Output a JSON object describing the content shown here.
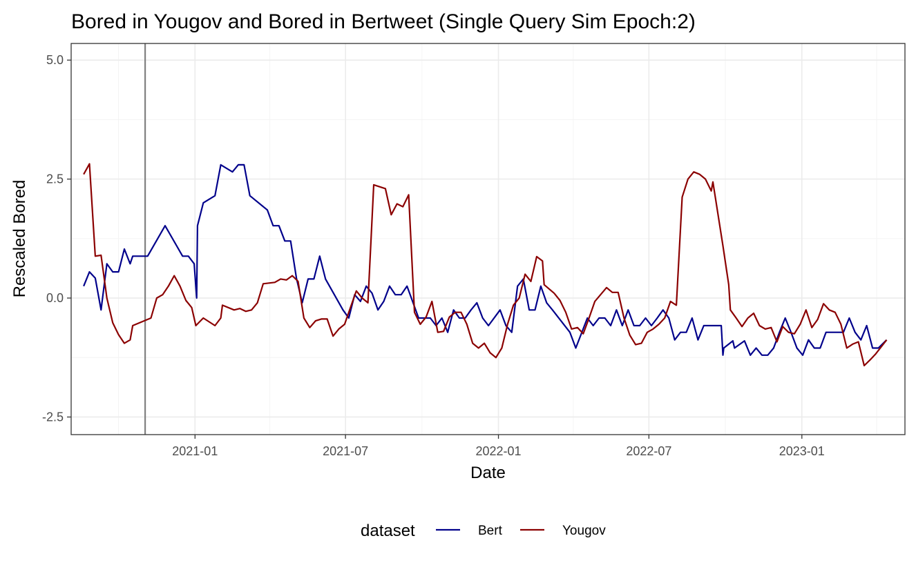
{
  "chart_data": {
    "type": "line",
    "title": "Bored in Yougov and Bored in Bertweet (Single Query Sim Epoch:2)",
    "xlabel": "Date",
    "ylabel": "Rescaled  Bored",
    "x_range": [
      "2020-08-05",
      "2023-05-05"
    ],
    "ylim": [
      -2.87,
      5.35
    ],
    "x_ticks": [
      {
        "date": "2021-01-01",
        "label": "2021-01"
      },
      {
        "date": "2021-07-01",
        "label": "2021-07"
      },
      {
        "date": "2022-01-01",
        "label": "2022-01"
      },
      {
        "date": "2022-07-01",
        "label": "2022-07"
      },
      {
        "date": "2023-01-01",
        "label": "2023-01"
      }
    ],
    "x_minor_ticks": [
      "2020-10-01",
      "2021-04-01",
      "2021-10-01",
      "2022-04-01",
      "2022-10-01",
      "2023-04-01"
    ],
    "y_ticks": [
      {
        "value": -2.5,
        "label": "-2.5"
      },
      {
        "value": 0.0,
        "label": "0.0"
      },
      {
        "value": 2.5,
        "label": "2.5"
      },
      {
        "value": 5.0,
        "label": "5.0"
      }
    ],
    "y_minor_ticks": [
      -1.25,
      1.25,
      3.75
    ],
    "grid": true,
    "vline": {
      "date": "2020-11-02",
      "color": "#808080"
    },
    "legend": {
      "title": "dataset",
      "position": "bottom"
    },
    "series": [
      {
        "name": "Bert",
        "color": "#00008B",
        "points": [
          [
            "2020-08-20",
            0.25
          ],
          [
            "2020-08-27",
            0.55
          ],
          [
            "2020-09-03",
            0.42
          ],
          [
            "2020-09-10",
            -0.25
          ],
          [
            "2020-09-17",
            0.72
          ],
          [
            "2020-09-24",
            0.55
          ],
          [
            "2020-10-01",
            0.55
          ],
          [
            "2020-10-08",
            1.03
          ],
          [
            "2020-10-15",
            0.72
          ],
          [
            "2020-10-18",
            0.88
          ],
          [
            "2020-10-22",
            0.88
          ],
          [
            "2020-11-05",
            0.88
          ],
          [
            "2020-11-26",
            1.52
          ],
          [
            "2020-12-17",
            0.88
          ],
          [
            "2020-12-24",
            0.88
          ],
          [
            "2020-12-31",
            0.72
          ],
          [
            "2021-01-03",
            0.0
          ],
          [
            "2021-01-04",
            1.52
          ],
          [
            "2021-01-11",
            2.0
          ],
          [
            "2021-01-25",
            2.15
          ],
          [
            "2021-02-01",
            2.8
          ],
          [
            "2021-02-15",
            2.65
          ],
          [
            "2021-02-22",
            2.8
          ],
          [
            "2021-03-01",
            2.8
          ],
          [
            "2021-03-08",
            2.15
          ],
          [
            "2021-03-29",
            1.85
          ],
          [
            "2021-04-05",
            1.52
          ],
          [
            "2021-04-12",
            1.52
          ],
          [
            "2021-04-19",
            1.2
          ],
          [
            "2021-04-26",
            1.2
          ],
          [
            "2021-05-03",
            0.42
          ],
          [
            "2021-05-10",
            -0.1
          ],
          [
            "2021-05-17",
            0.4
          ],
          [
            "2021-05-24",
            0.4
          ],
          [
            "2021-05-31",
            0.88
          ],
          [
            "2021-06-07",
            0.4
          ],
          [
            "2021-06-28",
            -0.25
          ],
          [
            "2021-07-05",
            -0.42
          ],
          [
            "2021-07-12",
            0.07
          ],
          [
            "2021-07-19",
            -0.07
          ],
          [
            "2021-07-26",
            0.25
          ],
          [
            "2021-08-02",
            0.1
          ],
          [
            "2021-08-09",
            -0.25
          ],
          [
            "2021-08-16",
            -0.07
          ],
          [
            "2021-08-23",
            0.25
          ],
          [
            "2021-08-30",
            0.07
          ],
          [
            "2021-09-06",
            0.07
          ],
          [
            "2021-09-13",
            0.25
          ],
          [
            "2021-09-27",
            -0.42
          ],
          [
            "2021-10-04",
            -0.42
          ],
          [
            "2021-10-11",
            -0.42
          ],
          [
            "2021-10-18",
            -0.58
          ],
          [
            "2021-10-25",
            -0.42
          ],
          [
            "2021-11-01",
            -0.72
          ],
          [
            "2021-11-08",
            -0.25
          ],
          [
            "2021-11-15",
            -0.42
          ],
          [
            "2021-11-22",
            -0.42
          ],
          [
            "2021-11-29",
            -0.25
          ],
          [
            "2021-12-06",
            -0.1
          ],
          [
            "2021-12-13",
            -0.42
          ],
          [
            "2021-12-20",
            -0.58
          ],
          [
            "2022-01-03",
            -0.25
          ],
          [
            "2022-01-10",
            -0.58
          ],
          [
            "2022-01-17",
            -0.72
          ],
          [
            "2022-01-24",
            0.25
          ],
          [
            "2022-01-31",
            0.4
          ],
          [
            "2022-02-07",
            -0.25
          ],
          [
            "2022-02-14",
            -0.25
          ],
          [
            "2022-02-21",
            0.25
          ],
          [
            "2022-02-28",
            -0.1
          ],
          [
            "2022-03-07",
            -0.25
          ],
          [
            "2022-03-28",
            -0.72
          ],
          [
            "2022-04-04",
            -1.05
          ],
          [
            "2022-04-18",
            -0.42
          ],
          [
            "2022-04-25",
            -0.58
          ],
          [
            "2022-05-02",
            -0.42
          ],
          [
            "2022-05-09",
            -0.42
          ],
          [
            "2022-05-16",
            -0.58
          ],
          [
            "2022-05-23",
            -0.25
          ],
          [
            "2022-05-30",
            -0.58
          ],
          [
            "2022-06-06",
            -0.25
          ],
          [
            "2022-06-13",
            -0.58
          ],
          [
            "2022-06-20",
            -0.58
          ],
          [
            "2022-06-27",
            -0.42
          ],
          [
            "2022-07-04",
            -0.58
          ],
          [
            "2022-07-11",
            -0.42
          ],
          [
            "2022-07-18",
            -0.25
          ],
          [
            "2022-07-25",
            -0.42
          ],
          [
            "2022-08-01",
            -0.88
          ],
          [
            "2022-08-08",
            -0.72
          ],
          [
            "2022-08-15",
            -0.72
          ],
          [
            "2022-08-22",
            -0.42
          ],
          [
            "2022-08-29",
            -0.88
          ],
          [
            "2022-09-05",
            -0.58
          ],
          [
            "2022-09-26",
            -0.58
          ],
          [
            "2022-09-28",
            -1.2
          ],
          [
            "2022-09-29",
            -1.05
          ],
          [
            "2022-10-10",
            -0.9
          ],
          [
            "2022-10-12",
            -1.05
          ],
          [
            "2022-10-24",
            -0.9
          ],
          [
            "2022-10-31",
            -1.2
          ],
          [
            "2022-11-07",
            -1.05
          ],
          [
            "2022-11-14",
            -1.2
          ],
          [
            "2022-11-21",
            -1.2
          ],
          [
            "2022-11-28",
            -1.05
          ],
          [
            "2022-12-05",
            -0.72
          ],
          [
            "2022-12-12",
            -0.42
          ],
          [
            "2022-12-19",
            -0.72
          ],
          [
            "2022-12-26",
            -1.05
          ],
          [
            "2023-01-02",
            -1.2
          ],
          [
            "2023-01-09",
            -0.88
          ],
          [
            "2023-01-16",
            -1.05
          ],
          [
            "2023-01-23",
            -1.05
          ],
          [
            "2023-01-30",
            -0.72
          ],
          [
            "2023-02-20",
            -0.72
          ],
          [
            "2023-02-27",
            -0.42
          ],
          [
            "2023-03-06",
            -0.72
          ],
          [
            "2023-03-13",
            -0.88
          ],
          [
            "2023-03-20",
            -0.58
          ],
          [
            "2023-03-27",
            -1.05
          ],
          [
            "2023-04-03",
            -1.05
          ],
          [
            "2023-04-13",
            -0.88
          ]
        ]
      },
      {
        "name": "Yougov",
        "color": "#8B0000",
        "points": [
          [
            "2020-08-20",
            2.6
          ],
          [
            "2020-08-27",
            2.82
          ],
          [
            "2020-09-03",
            0.88
          ],
          [
            "2020-09-10",
            0.9
          ],
          [
            "2020-09-17",
            0.0
          ],
          [
            "2020-09-24",
            -0.52
          ],
          [
            "2020-10-01",
            -0.77
          ],
          [
            "2020-10-08",
            -0.95
          ],
          [
            "2020-10-15",
            -0.88
          ],
          [
            "2020-10-18",
            -0.58
          ],
          [
            "2020-11-09",
            -0.42
          ],
          [
            "2020-11-16",
            0.0
          ],
          [
            "2020-11-23",
            0.07
          ],
          [
            "2020-11-30",
            0.25
          ],
          [
            "2020-12-07",
            0.47
          ],
          [
            "2020-12-14",
            0.25
          ],
          [
            "2020-12-21",
            -0.05
          ],
          [
            "2020-12-28",
            -0.2
          ],
          [
            "2021-01-02",
            -0.58
          ],
          [
            "2021-01-11",
            -0.42
          ],
          [
            "2021-01-25",
            -0.58
          ],
          [
            "2021-02-01",
            -0.42
          ],
          [
            "2021-02-03",
            -0.15
          ],
          [
            "2021-02-17",
            -0.25
          ],
          [
            "2021-02-24",
            -0.22
          ],
          [
            "2021-03-03",
            -0.28
          ],
          [
            "2021-03-10",
            -0.25
          ],
          [
            "2021-03-17",
            -0.1
          ],
          [
            "2021-03-24",
            0.3
          ],
          [
            "2021-04-07",
            0.33
          ],
          [
            "2021-04-14",
            0.4
          ],
          [
            "2021-04-21",
            0.38
          ],
          [
            "2021-04-28",
            0.47
          ],
          [
            "2021-05-05",
            0.35
          ],
          [
            "2021-05-12",
            -0.42
          ],
          [
            "2021-05-19",
            -0.62
          ],
          [
            "2021-05-26",
            -0.48
          ],
          [
            "2021-06-02",
            -0.44
          ],
          [
            "2021-06-09",
            -0.44
          ],
          [
            "2021-06-16",
            -0.8
          ],
          [
            "2021-06-23",
            -0.65
          ],
          [
            "2021-06-30",
            -0.55
          ],
          [
            "2021-07-07",
            -0.2
          ],
          [
            "2021-07-14",
            0.15
          ],
          [
            "2021-07-21",
            0.0
          ],
          [
            "2021-07-28",
            -0.1
          ],
          [
            "2021-08-04",
            2.38
          ],
          [
            "2021-08-18",
            2.3
          ],
          [
            "2021-08-25",
            1.75
          ],
          [
            "2021-09-01",
            1.98
          ],
          [
            "2021-09-08",
            1.92
          ],
          [
            "2021-09-15",
            2.17
          ],
          [
            "2021-09-22",
            -0.3
          ],
          [
            "2021-09-29",
            -0.55
          ],
          [
            "2021-10-06",
            -0.4
          ],
          [
            "2021-10-13",
            -0.07
          ],
          [
            "2021-10-20",
            -0.72
          ],
          [
            "2021-10-27",
            -0.7
          ],
          [
            "2021-11-03",
            -0.4
          ],
          [
            "2021-11-10",
            -0.3
          ],
          [
            "2021-11-17",
            -0.3
          ],
          [
            "2021-11-24",
            -0.55
          ],
          [
            "2021-12-01",
            -0.95
          ],
          [
            "2021-12-08",
            -1.05
          ],
          [
            "2021-12-15",
            -0.95
          ],
          [
            "2021-12-22",
            -1.15
          ],
          [
            "2021-12-29",
            -1.25
          ],
          [
            "2022-01-05",
            -1.05
          ],
          [
            "2022-01-12",
            -0.55
          ],
          [
            "2022-01-19",
            -0.15
          ],
          [
            "2022-01-26",
            0.0
          ],
          [
            "2022-02-02",
            0.5
          ],
          [
            "2022-02-09",
            0.35
          ],
          [
            "2022-02-16",
            0.87
          ],
          [
            "2022-02-23",
            0.78
          ],
          [
            "2022-02-25",
            0.28
          ],
          [
            "2022-03-09",
            0.1
          ],
          [
            "2022-03-16",
            -0.05
          ],
          [
            "2022-03-23",
            -0.3
          ],
          [
            "2022-03-30",
            -0.65
          ],
          [
            "2022-04-06",
            -0.62
          ],
          [
            "2022-04-13",
            -0.75
          ],
          [
            "2022-04-20",
            -0.42
          ],
          [
            "2022-04-27",
            -0.07
          ],
          [
            "2022-05-11",
            0.22
          ],
          [
            "2022-05-18",
            0.12
          ],
          [
            "2022-05-25",
            0.12
          ],
          [
            "2022-06-01",
            -0.42
          ],
          [
            "2022-06-08",
            -0.78
          ],
          [
            "2022-06-15",
            -0.98
          ],
          [
            "2022-06-22",
            -0.95
          ],
          [
            "2022-06-29",
            -0.72
          ],
          [
            "2022-07-06",
            -0.65
          ],
          [
            "2022-07-13",
            -0.55
          ],
          [
            "2022-07-20",
            -0.42
          ],
          [
            "2022-07-27",
            -0.07
          ],
          [
            "2022-08-03",
            -0.15
          ],
          [
            "2022-08-10",
            2.12
          ],
          [
            "2022-08-17",
            2.5
          ],
          [
            "2022-08-24",
            2.65
          ],
          [
            "2022-08-31",
            2.6
          ],
          [
            "2022-09-07",
            2.5
          ],
          [
            "2022-09-14",
            2.25
          ],
          [
            "2022-09-16",
            2.44
          ],
          [
            "2022-09-28",
            1.1
          ],
          [
            "2022-10-05",
            0.28
          ],
          [
            "2022-10-07",
            -0.25
          ],
          [
            "2022-10-14",
            -0.42
          ],
          [
            "2022-10-21",
            -0.6
          ],
          [
            "2022-10-28",
            -0.42
          ],
          [
            "2022-11-04",
            -0.32
          ],
          [
            "2022-11-11",
            -0.58
          ],
          [
            "2022-11-18",
            -0.65
          ],
          [
            "2022-11-25",
            -0.62
          ],
          [
            "2022-12-02",
            -0.92
          ],
          [
            "2022-12-09",
            -0.6
          ],
          [
            "2022-12-16",
            -0.72
          ],
          [
            "2022-12-23",
            -0.75
          ],
          [
            "2022-12-30",
            -0.55
          ],
          [
            "2023-01-06",
            -0.25
          ],
          [
            "2023-01-13",
            -0.62
          ],
          [
            "2023-01-20",
            -0.45
          ],
          [
            "2023-01-27",
            -0.12
          ],
          [
            "2023-02-03",
            -0.25
          ],
          [
            "2023-02-10",
            -0.3
          ],
          [
            "2023-02-17",
            -0.55
          ],
          [
            "2023-02-24",
            -1.05
          ],
          [
            "2023-03-03",
            -0.97
          ],
          [
            "2023-03-10",
            -0.92
          ],
          [
            "2023-03-17",
            -1.42
          ],
          [
            "2023-03-24",
            -1.3
          ],
          [
            "2023-03-31",
            -1.17
          ],
          [
            "2023-04-13",
            -0.88
          ]
        ]
      }
    ]
  }
}
